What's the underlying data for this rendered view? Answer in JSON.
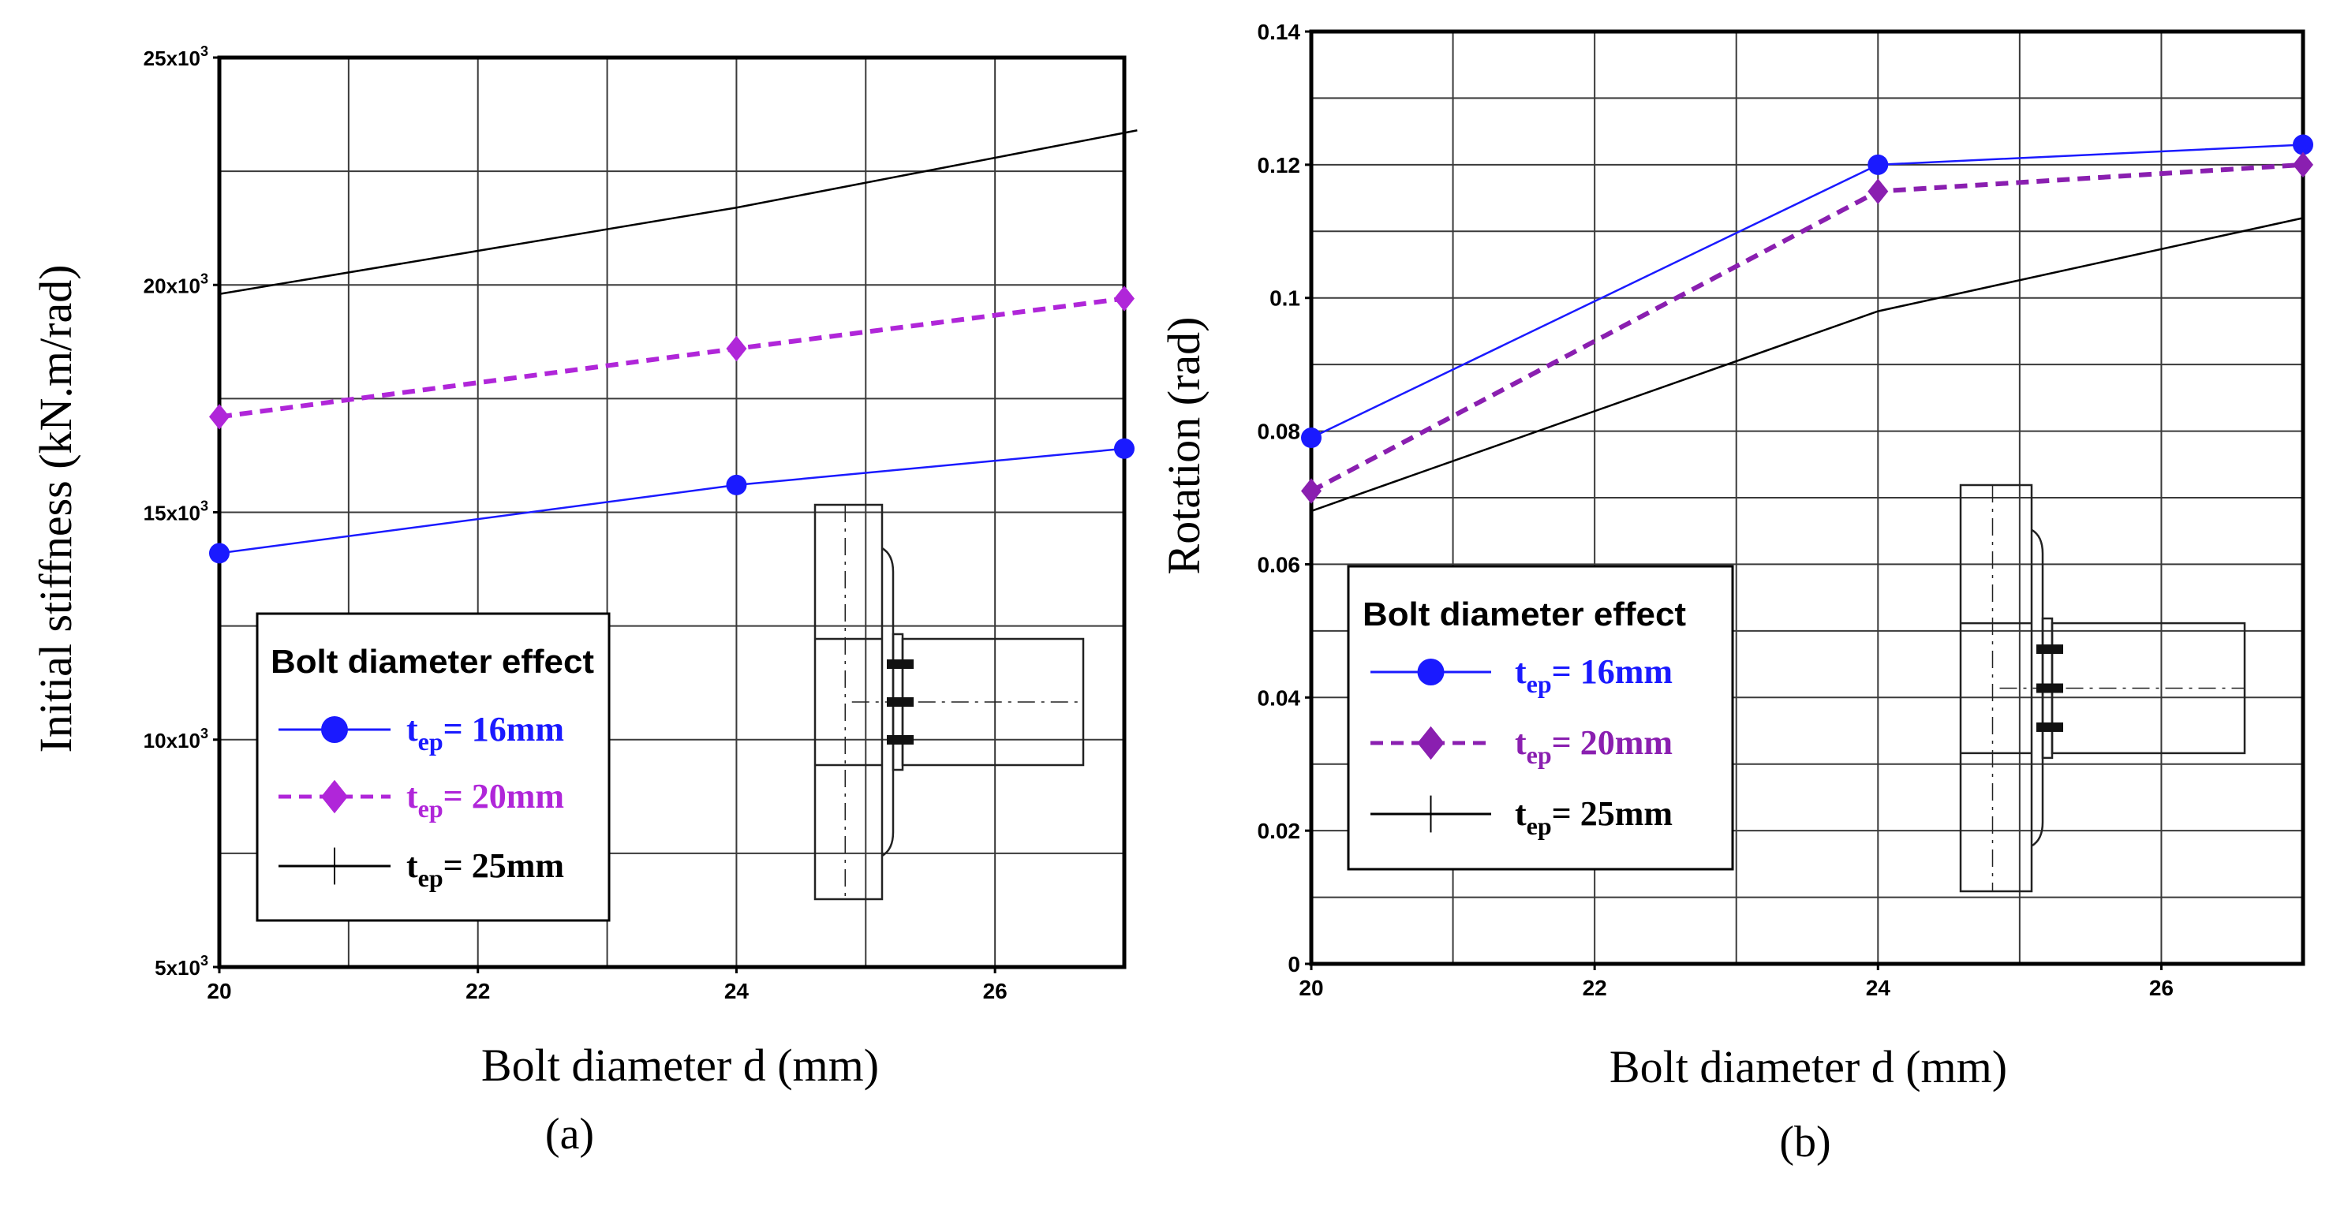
{
  "chart_data": [
    {
      "type": "line",
      "panel_label": "(a)",
      "title": "",
      "xlabel": "Bolt diameter d (mm)",
      "ylabel": "Initial stiffness (kN.m/rad)",
      "xlim": [
        20,
        27
      ],
      "ylim": [
        5000,
        25000
      ],
      "xticks": [
        20,
        22,
        24,
        26
      ],
      "xtick_labels": [
        "20",
        "22",
        "24",
        "26"
      ],
      "yticks": [
        5000,
        10000,
        15000,
        20000,
        25000
      ],
      "ytick_labels": [
        {
          "mant": "5x10",
          "exp": "3"
        },
        {
          "mant": "10x10",
          "exp": "3"
        },
        {
          "mant": "15x10",
          "exp": "3"
        },
        {
          "mant": "20x10",
          "exp": "3"
        },
        {
          "mant": "25x10",
          "exp": "3"
        }
      ],
      "grid": true,
      "legend": {
        "title": "Bolt diameter effect",
        "position": "bottom-left"
      },
      "series": [
        {
          "name_main": "t",
          "name_sub": "ep",
          "name_rest": "= 16mm",
          "color": "#1a1aff",
          "marker": "circle",
          "dash": "solid",
          "x": [
            20,
            24,
            27
          ],
          "y": [
            14100,
            15600,
            16400
          ]
        },
        {
          "name_main": "t",
          "name_sub": "ep",
          "name_rest": "= 20mm",
          "color": "#b026d9",
          "marker": "diamond",
          "dash": "dashed",
          "x": [
            20,
            24,
            27
          ],
          "y": [
            17100,
            18600,
            19700
          ]
        },
        {
          "name_main": "t",
          "name_sub": "ep",
          "name_rest": "= 25mm",
          "color": "#000000",
          "marker": "plus",
          "dash": "solid",
          "x": [
            20,
            24,
            27.1
          ],
          "y": [
            19800,
            21700,
            23400
          ]
        }
      ]
    },
    {
      "type": "line",
      "panel_label": "(b)",
      "title": "",
      "xlabel": "Bolt diameter d (mm)",
      "ylabel": "Rotation (rad)",
      "xlim": [
        20,
        27
      ],
      "ylim": [
        0,
        0.14
      ],
      "xticks": [
        20,
        22,
        24,
        26
      ],
      "xtick_labels": [
        "20",
        "22",
        "24",
        "26"
      ],
      "yticks": [
        0,
        0.02,
        0.04,
        0.06,
        0.08,
        0.1,
        0.12,
        0.14
      ],
      "ytick_labels": [
        "0",
        "0.02",
        "0.04",
        "0.06",
        "0.08",
        "0.1",
        "0.12",
        "0.14"
      ],
      "grid": true,
      "legend": {
        "title": "Bolt diameter effect",
        "position": "bottom-left"
      },
      "series": [
        {
          "name_main": "t",
          "name_sub": "ep",
          "name_rest": "= 16mm",
          "color": "#1a1aff",
          "marker": "circle",
          "dash": "solid",
          "x": [
            20,
            24,
            27
          ],
          "y": [
            0.079,
            0.12,
            0.123
          ]
        },
        {
          "name_main": "t",
          "name_sub": "ep",
          "name_rest": "= 20mm",
          "color": "#8a1fb0",
          "marker": "diamond",
          "dash": "dashed",
          "x": [
            20,
            24,
            27
          ],
          "y": [
            0.071,
            0.116,
            0.12
          ]
        },
        {
          "name_main": "t",
          "name_sub": "ep",
          "name_rest": "= 25mm",
          "color": "#000000",
          "marker": "plus",
          "dash": "solid",
          "x": [
            20,
            24,
            27
          ],
          "y": [
            0.068,
            0.098,
            0.112
          ]
        }
      ]
    }
  ]
}
